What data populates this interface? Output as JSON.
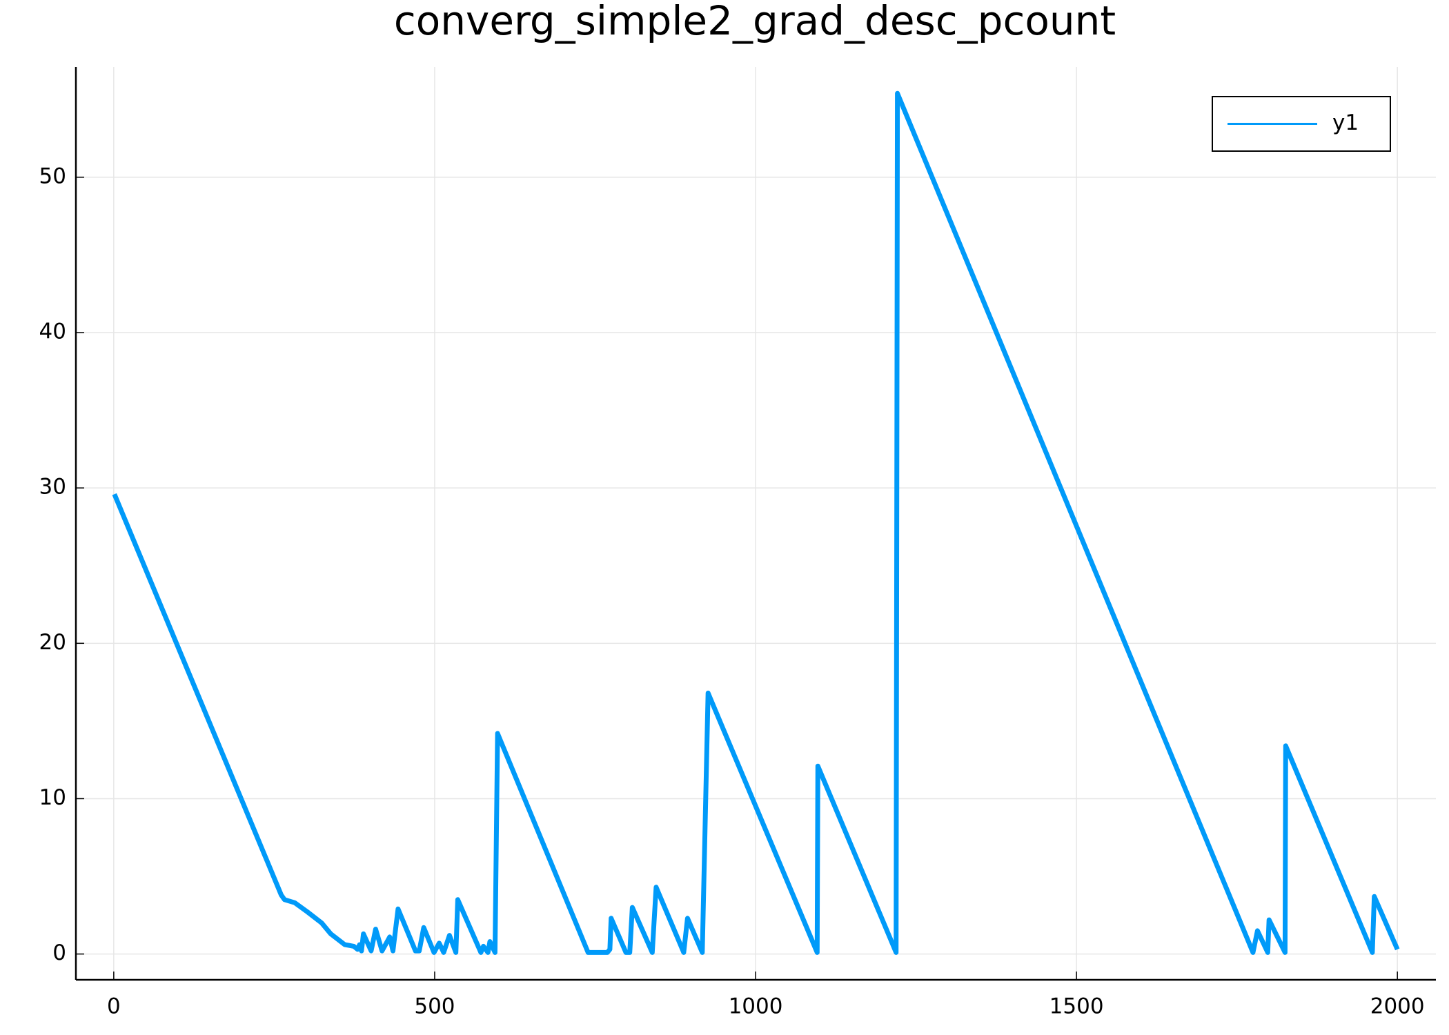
{
  "chart_data": {
    "type": "line",
    "title": "converg_simple2_grad_desc_pcount",
    "x": [
      1,
      261,
      266,
      282,
      302,
      324,
      338,
      360,
      374,
      380,
      383,
      386,
      389,
      401,
      408,
      418,
      430,
      435,
      443,
      470,
      476,
      483,
      499,
      507,
      514,
      523,
      533,
      536,
      572,
      576,
      583,
      586,
      594,
      598,
      739,
      769,
      773,
      775,
      798,
      804,
      808,
      839,
      845,
      888,
      894,
      917,
      926,
      1096,
      1097,
      1219,
      1221,
      1775,
      1782,
      1798,
      1800,
      1825,
      1826,
      1961,
      1964,
      2000
    ],
    "series": [
      {
        "name": "y1",
        "color": "#009af9",
        "values": [
          29.6,
          3.8,
          3.5,
          3.3,
          2.7,
          2.0,
          1.3,
          0.6,
          0.5,
          0.3,
          0.6,
          0.2,
          1.3,
          0.2,
          1.6,
          0.2,
          1.1,
          0.2,
          2.9,
          0.2,
          0.2,
          1.7,
          0.1,
          0.7,
          0.1,
          1.2,
          0.1,
          3.5,
          0.1,
          0.5,
          0.1,
          0.8,
          0.1,
          14.2,
          0.1,
          0.1,
          0.3,
          2.3,
          0.1,
          0.1,
          3.0,
          0.1,
          4.3,
          0.1,
          2.3,
          0.1,
          16.8,
          0.1,
          12.1,
          0.1,
          55.4,
          0.1,
          1.5,
          0.1,
          2.2,
          0.1,
          13.4,
          0.1,
          3.7,
          0.3
        ]
      }
    ],
    "xlim": [
      -59,
      2060
    ],
    "ylim": [
      -1.66,
      57.1
    ],
    "xticks": [
      0,
      500,
      1000,
      1500,
      2000
    ],
    "yticks": [
      0,
      10,
      20,
      30,
      40,
      50
    ],
    "grid": true,
    "legend": "top-right"
  }
}
